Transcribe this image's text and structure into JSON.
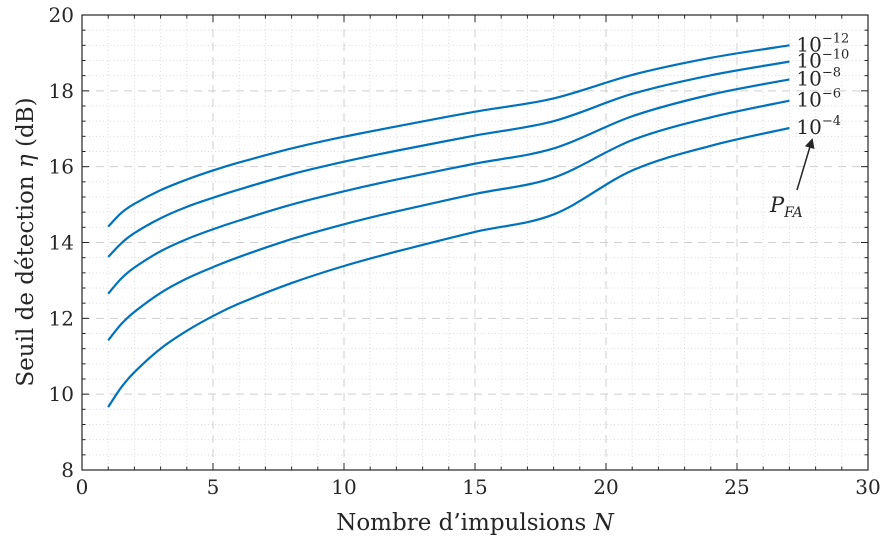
{
  "chart_data": {
    "type": "line",
    "title": "",
    "xlabel": "Nombre d’impulsions N",
    "xlabel_text": "Nombre d’impulsions ",
    "xlabel_var": "N",
    "ylabel": "Seuil de détection η (dB)",
    "ylabel_pre": "Seuil de détection ",
    "ylabel_var": "η",
    "ylabel_post": " (dB)",
    "xlim": [
      0,
      30
    ],
    "ylim": [
      8,
      20
    ],
    "xticks": [
      0,
      5,
      10,
      15,
      20,
      25,
      30
    ],
    "yticks": [
      8,
      10,
      12,
      14,
      16,
      18,
      20
    ],
    "x_minor_step": 1,
    "y_minor_step": 0.4,
    "grid": "major dashed, minor dotted",
    "line_color": "#0072BD",
    "x": [
      1,
      1.5,
      2,
      3,
      4,
      5,
      6,
      8,
      10,
      12,
      15,
      18,
      21,
      24,
      27
    ],
    "series": [
      {
        "exponent": "−12",
        "values": [
          14.42,
          14.78,
          15.02,
          15.38,
          15.66,
          15.9,
          16.11,
          16.48,
          16.79,
          17.06,
          17.45,
          17.8,
          18.42,
          18.87,
          19.2
        ]
      },
      {
        "exponent": "−10",
        "values": [
          13.62,
          13.98,
          14.25,
          14.64,
          14.94,
          15.18,
          15.4,
          15.8,
          16.13,
          16.42,
          16.82,
          17.2,
          17.92,
          18.41,
          18.77
        ]
      },
      {
        "exponent": "−8",
        "values": [
          12.65,
          13.05,
          13.34,
          13.77,
          14.09,
          14.35,
          14.58,
          15.0,
          15.35,
          15.66,
          16.08,
          16.48,
          17.33,
          17.9,
          18.3
        ]
      },
      {
        "exponent": "−6",
        "values": [
          11.42,
          11.85,
          12.17,
          12.67,
          13.05,
          13.35,
          13.62,
          14.09,
          14.48,
          14.82,
          15.28,
          15.71,
          16.7,
          17.3,
          17.74
        ]
      },
      {
        "exponent": "−4",
        "values": [
          9.66,
          10.18,
          10.58,
          11.2,
          11.67,
          12.06,
          12.39,
          12.93,
          13.38,
          13.76,
          14.28,
          14.74,
          15.9,
          16.55,
          17.02
        ]
      }
    ],
    "legend_base": "10",
    "annotation": {
      "base": "P",
      "subscript": "FA"
    }
  }
}
